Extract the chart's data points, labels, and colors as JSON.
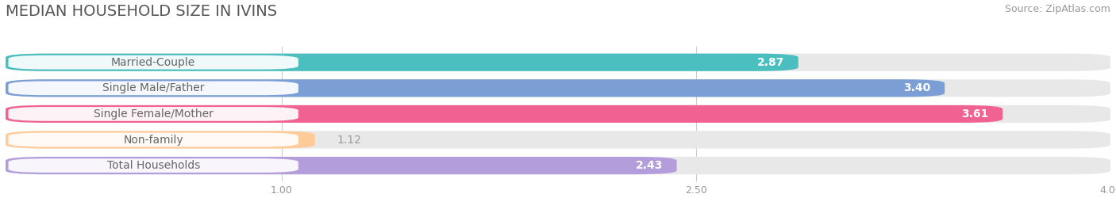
{
  "title": "MEDIAN HOUSEHOLD SIZE IN IVINS",
  "source": "Source: ZipAtlas.com",
  "categories": [
    "Married-Couple",
    "Single Male/Father",
    "Single Female/Mother",
    "Non-family",
    "Total Households"
  ],
  "values": [
    2.87,
    3.4,
    3.61,
    1.12,
    2.43
  ],
  "bar_colors": [
    "#4BBFBF",
    "#7B9FD4",
    "#F06292",
    "#FFCC99",
    "#B39DDB"
  ],
  "bar_bg_color": "#E8E8E8",
  "xlim": [
    0.0,
    4.0
  ],
  "xticks": [
    1.0,
    2.5,
    4.0
  ],
  "title_fontsize": 14,
  "source_fontsize": 9,
  "bar_label_fontsize": 10,
  "cat_label_fontsize": 10,
  "background_color": "#FFFFFF",
  "value_threshold": 1.5,
  "label_pill_color": "#FFFFFF",
  "label_text_color": "#666666",
  "value_inside_color": "#FFFFFF",
  "value_outside_color": "#999999"
}
